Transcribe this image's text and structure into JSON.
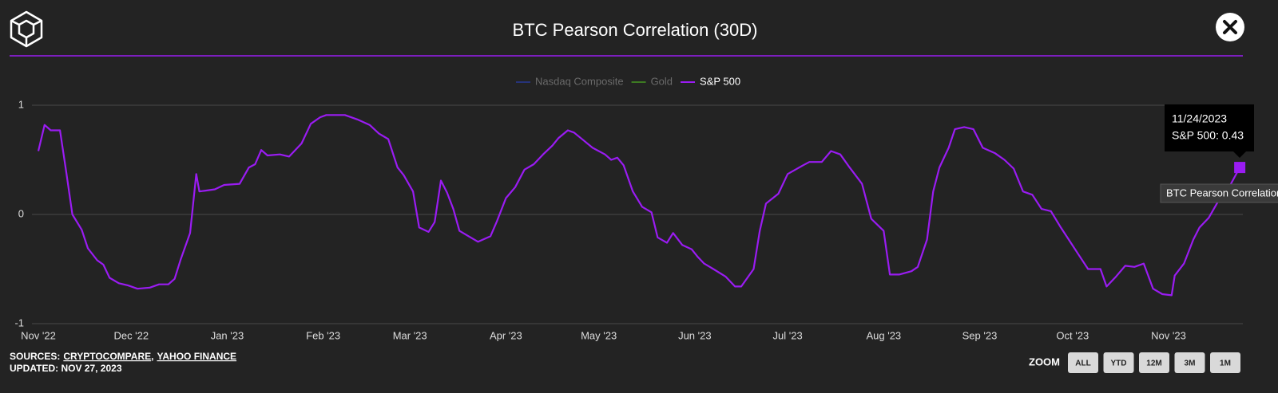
{
  "chart_data": {
    "type": "line",
    "title": "BTC Pearson Correlation (30D)",
    "x": [
      "2022-11-01",
      "2022-11-03",
      "2022-11-05",
      "2022-11-08",
      "2022-11-10",
      "2022-11-12",
      "2022-11-15",
      "2022-11-17",
      "2022-11-20",
      "2022-11-22",
      "2022-11-24",
      "2022-11-27",
      "2022-11-30",
      "2022-12-03",
      "2022-12-07",
      "2022-12-10",
      "2022-12-13",
      "2022-12-15",
      "2022-12-17",
      "2022-12-20",
      "2022-12-22",
      "2022-12-23",
      "2022-12-28",
      "2022-12-31",
      "2023-01-05",
      "2023-01-08",
      "2023-01-10",
      "2023-01-12",
      "2023-01-14",
      "2023-01-18",
      "2023-01-21",
      "2023-01-25",
      "2023-01-28",
      "2023-01-31",
      "2023-02-02",
      "2023-02-08",
      "2023-02-12",
      "2023-02-16",
      "2023-02-19",
      "2023-02-22",
      "2023-02-25",
      "2023-02-27",
      "2023-03-02",
      "2023-03-04",
      "2023-03-07",
      "2023-03-09",
      "2023-03-11",
      "2023-03-13",
      "2023-03-15",
      "2023-03-17",
      "2023-03-20",
      "2023-03-23",
      "2023-03-27",
      "2023-03-29",
      "2023-04-01",
      "2023-04-04",
      "2023-04-07",
      "2023-04-10",
      "2023-04-13",
      "2023-04-16",
      "2023-04-18",
      "2023-04-21",
      "2023-04-23",
      "2023-04-26",
      "2023-04-29",
      "2023-05-03",
      "2023-05-05",
      "2023-05-07",
      "2023-05-09",
      "2023-05-12",
      "2023-05-15",
      "2023-05-18",
      "2023-05-20",
      "2023-05-23",
      "2023-05-25",
      "2023-05-28",
      "2023-05-31",
      "2023-06-02",
      "2023-06-04",
      "2023-06-07",
      "2023-06-11",
      "2023-06-14",
      "2023-06-16",
      "2023-06-20",
      "2023-06-22",
      "2023-06-24",
      "2023-06-28",
      "2023-07-01",
      "2023-07-06",
      "2023-07-08",
      "2023-07-12",
      "2023-07-15",
      "2023-07-18",
      "2023-07-21",
      "2023-07-25",
      "2023-07-28",
      "2023-08-01",
      "2023-08-03",
      "2023-08-06",
      "2023-08-10",
      "2023-08-12",
      "2023-08-15",
      "2023-08-17",
      "2023-08-19",
      "2023-08-22",
      "2023-08-24",
      "2023-08-27",
      "2023-08-30",
      "2023-09-02",
      "2023-09-06",
      "2023-09-09",
      "2023-09-12",
      "2023-09-15",
      "2023-09-18",
      "2023-09-21",
      "2023-09-24",
      "2023-09-27",
      "2023-09-30",
      "2023-10-03",
      "2023-10-06",
      "2023-10-10",
      "2023-10-12",
      "2023-10-15",
      "2023-10-18",
      "2023-10-21",
      "2023-10-24",
      "2023-10-27",
      "2023-10-30",
      "2023-11-02",
      "2023-11-03",
      "2023-11-06",
      "2023-11-09",
      "2023-11-11",
      "2023-11-14",
      "2023-11-17",
      "2023-11-20",
      "2023-11-24"
    ],
    "series": [
      {
        "name": "Nasdaq Composite",
        "color": "#26337a",
        "visible": false
      },
      {
        "name": "Gold",
        "color": "#3d7a22",
        "visible": false
      },
      {
        "name": "S&P 500",
        "color": "#9a1cf2",
        "visible": true,
        "values": [
          0.58,
          0.82,
          0.77,
          0.77,
          0.39,
          0.0,
          -0.14,
          -0.31,
          -0.42,
          -0.46,
          -0.58,
          -0.63,
          -0.65,
          -0.68,
          -0.67,
          -0.64,
          -0.64,
          -0.59,
          -0.41,
          -0.17,
          0.37,
          0.21,
          0.23,
          0.27,
          0.28,
          0.43,
          0.46,
          0.59,
          0.54,
          0.55,
          0.53,
          0.65,
          0.83,
          0.89,
          0.91,
          0.91,
          0.87,
          0.82,
          0.74,
          0.69,
          0.43,
          0.36,
          0.21,
          -0.12,
          -0.16,
          -0.07,
          0.31,
          0.2,
          0.05,
          -0.15,
          -0.2,
          -0.25,
          -0.2,
          -0.07,
          0.15,
          0.25,
          0.41,
          0.46,
          0.55,
          0.63,
          0.7,
          0.77,
          0.75,
          0.68,
          0.61,
          0.55,
          0.5,
          0.52,
          0.45,
          0.21,
          0.07,
          0.02,
          -0.21,
          -0.26,
          -0.17,
          -0.28,
          -0.32,
          -0.39,
          -0.45,
          -0.5,
          -0.57,
          -0.66,
          -0.66,
          -0.5,
          -0.15,
          0.1,
          0.19,
          0.37,
          0.45,
          0.48,
          0.48,
          0.58,
          0.55,
          0.43,
          0.28,
          -0.04,
          -0.15,
          -0.55,
          -0.55,
          -0.52,
          -0.48,
          -0.23,
          0.21,
          0.43,
          0.61,
          0.78,
          0.8,
          0.78,
          0.61,
          0.56,
          0.5,
          0.42,
          0.21,
          0.18,
          0.05,
          0.03,
          -0.11,
          -0.24,
          -0.37,
          -0.5,
          -0.5,
          -0.66,
          -0.57,
          -0.47,
          -0.48,
          -0.45,
          -0.68,
          -0.73,
          -0.74,
          -0.56,
          -0.45,
          -0.23,
          -0.12,
          -0.03,
          0.12,
          0.22,
          0.43
        ]
      }
    ],
    "xlim": [
      "2022-11-01",
      "2023-11-25"
    ],
    "xticks": [
      {
        "value": "2022-11-01",
        "label": "Nov '22"
      },
      {
        "value": "2022-12-01",
        "label": "Dec '22"
      },
      {
        "value": "2023-01-01",
        "label": "Jan '23"
      },
      {
        "value": "2023-02-01",
        "label": "Feb '23"
      },
      {
        "value": "2023-03-01",
        "label": "Mar '23"
      },
      {
        "value": "2023-04-01",
        "label": "Apr '23"
      },
      {
        "value": "2023-05-01",
        "label": "May '23"
      },
      {
        "value": "2023-06-01",
        "label": "Jun '23"
      },
      {
        "value": "2023-07-01",
        "label": "Jul '23"
      },
      {
        "value": "2023-08-01",
        "label": "Aug '23"
      },
      {
        "value": "2023-09-01",
        "label": "Sep '23"
      },
      {
        "value": "2023-10-01",
        "label": "Oct '23"
      },
      {
        "value": "2023-11-01",
        "label": "Nov '23"
      }
    ],
    "ylim": [
      -1,
      1
    ],
    "yticks": [
      -1,
      0,
      1
    ],
    "grid": true,
    "legend": "top",
    "tooltip": {
      "date": "11/24/2023",
      "text": "S&P 500: 0.43"
    }
  },
  "footer": {
    "sources_label": "SOURCES:",
    "sources": [
      "CRYPTOCOMPARE",
      "YAHOO FINANCE"
    ],
    "separator": ",",
    "updated": "UPDATED: NOV 27, 2023"
  },
  "zoom": {
    "label": "ZOOM",
    "buttons": [
      "ALL",
      "YTD",
      "12M",
      "3M",
      "1M"
    ]
  }
}
